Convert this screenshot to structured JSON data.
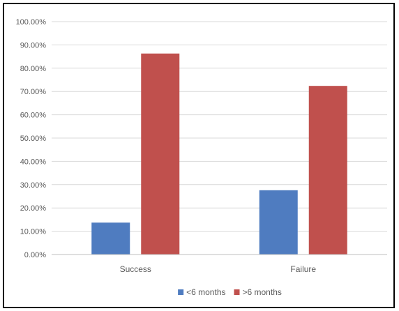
{
  "chart_data": {
    "type": "bar",
    "categories": [
      "Success",
      "Failure"
    ],
    "series": [
      {
        "name": "<6 months",
        "color": "#4F7CC0",
        "values": [
          13.7,
          27.6
        ]
      },
      {
        "name": ">6 months",
        "color": "#C0504D",
        "values": [
          86.3,
          72.4
        ]
      }
    ],
    "yticks": [
      "0.00%",
      "10.00%",
      "20.00%",
      "30.00%",
      "40.00%",
      "50.00%",
      "60.00%",
      "70.00%",
      "80.00%",
      "90.00%",
      "100.00%"
    ],
    "ylim": [
      0,
      100
    ],
    "grid": true,
    "legend_position": "bottom",
    "colors": {
      "grid": "#D9D9D9",
      "axis": "#BFBFBF",
      "text": "#595959"
    }
  }
}
